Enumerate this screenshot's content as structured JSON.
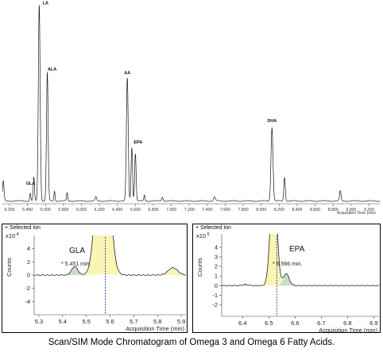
{
  "chart_data": [
    {
      "type": "line",
      "title": "",
      "xlabel": "Acquisition Time (min)",
      "ylabel": "",
      "xlim": [
        5.12,
        9.32
      ],
      "ylim": [
        0,
        100
      ],
      "x_ticks": [
        "5.200",
        "5.400",
        "5.600",
        "5.800",
        "6.000",
        "6.200",
        "6.400",
        "6.600",
        "6.800",
        "7.000",
        "7.200",
        "7.400",
        "7.600",
        "7.800",
        "8.000",
        "8.200",
        "8.400",
        "8.600",
        "8.800",
        "9.000",
        "9.200"
      ],
      "peaks": [
        {
          "x": 5.13,
          "height": 10,
          "width": 0.008,
          "label": ""
        },
        {
          "x": 5.43,
          "height": 4,
          "width": 0.006,
          "label": ""
        },
        {
          "x": 5.47,
          "height": 12,
          "width": 0.007,
          "label": "GLA"
        },
        {
          "x": 5.53,
          "height": 99,
          "width": 0.01,
          "label": "LA"
        },
        {
          "x": 5.62,
          "height": 65,
          "width": 0.009,
          "label": "ALA"
        },
        {
          "x": 5.7,
          "height": 5,
          "width": 0.006,
          "label": ""
        },
        {
          "x": 5.84,
          "height": 4,
          "width": 0.006,
          "label": ""
        },
        {
          "x": 6.16,
          "height": 2,
          "width": 0.008,
          "label": ""
        },
        {
          "x": 6.51,
          "height": 62,
          "width": 0.01,
          "label": "AA"
        },
        {
          "x": 6.56,
          "height": 27,
          "width": 0.008,
          "label": "EPA"
        },
        {
          "x": 6.6,
          "height": 24,
          "width": 0.008,
          "label": ""
        },
        {
          "x": 6.7,
          "height": 3,
          "width": 0.006,
          "label": ""
        },
        {
          "x": 6.9,
          "height": 2,
          "width": 0.008,
          "label": ""
        },
        {
          "x": 7.48,
          "height": 2,
          "width": 0.01,
          "label": ""
        },
        {
          "x": 8.12,
          "height": 37,
          "width": 0.011,
          "label": "DHA"
        },
        {
          "x": 8.26,
          "height": 12,
          "width": 0.008,
          "label": ""
        },
        {
          "x": 8.88,
          "height": 5,
          "width": 0.008,
          "label": ""
        }
      ]
    },
    {
      "type": "line",
      "header": "+ Selected Ion",
      "exponent": "x10",
      "exponent_power": "4",
      "ylabel": "Counts",
      "xlabel": "Acquisition Time (min)",
      "xlim": [
        5.28,
        5.92
      ],
      "ylim": [
        -6,
        6
      ],
      "x_ticks": [
        "5.3",
        "5.4",
        "5.5",
        "5.6",
        "5.7",
        "5.8",
        "5.9"
      ],
      "y_ticks": [
        "-4",
        "-2",
        "0",
        "2",
        "4"
      ],
      "peak_label": "GLA",
      "annotation": "* 5.451 min.",
      "marker_x": 5.58,
      "peaks": [
        {
          "x": 5.451,
          "height": 1.3,
          "width": 0.013,
          "fill": "#c9dfc4"
        },
        {
          "x": 5.57,
          "height": 30,
          "width": 0.024,
          "fill": "#fbf4b4"
        },
        {
          "x": 5.865,
          "height": 1.1,
          "width": 0.02,
          "fill": "#fbf4b4"
        }
      ]
    },
    {
      "type": "line",
      "header": "+ Selected Ion",
      "exponent": "x10",
      "exponent_power": "5",
      "ylabel": "Counts",
      "xlabel": "Acquisition Time (min)",
      "xlim": [
        6.32,
        6.92
      ],
      "ylim": [
        -3.2,
        5.4
      ],
      "x_ticks": [
        "6.4",
        "6.5",
        "6.6",
        "6.7",
        "6.8",
        "6.9"
      ],
      "y_ticks": [
        "-2",
        "-1",
        "0",
        "1",
        "2",
        "3",
        "4"
      ],
      "peak_label": "EPA",
      "annotation": "* 6.566 min.",
      "marker_x": 6.53,
      "peaks": [
        {
          "x": 6.41,
          "height": 0.12,
          "width": 0.01,
          "fill": "#c9dfc4"
        },
        {
          "x": 6.518,
          "height": 12,
          "width": 0.012,
          "fill": "#fbf4b4"
        },
        {
          "x": 6.566,
          "height": 1.25,
          "width": 0.011,
          "fill": "#c9dfc4"
        }
      ]
    }
  ],
  "caption": "Scan/SIM Mode Chromatogram of Omega 3 and Omega 6 Fatty Acids."
}
